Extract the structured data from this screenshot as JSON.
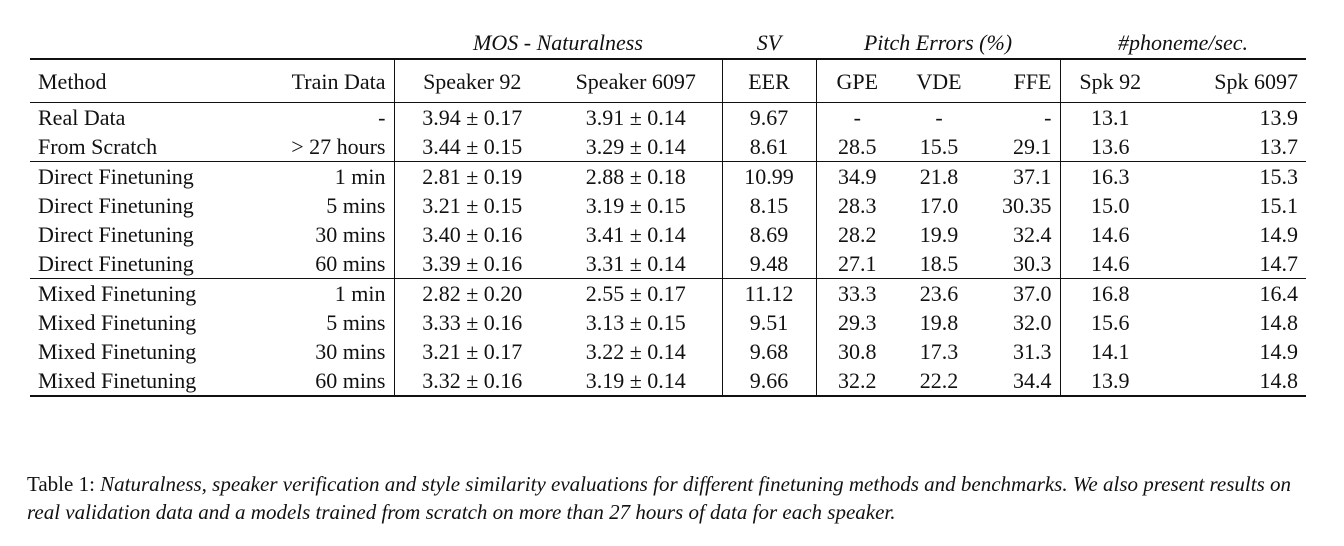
{
  "table": {
    "group_headers": {
      "mos": "MOS - Naturalness",
      "sv": "SV",
      "pitch": "Pitch Errors (%)",
      "rate": "#phoneme/sec."
    },
    "columns": [
      "Method",
      "Train Data",
      "Speaker 92",
      "Speaker 6097",
      "EER",
      "GPE",
      "VDE",
      "FFE",
      "Spk 92",
      "Spk 6097"
    ],
    "rows": [
      [
        "Real Data",
        "-",
        "3.94 ± 0.17",
        "3.91 ± 0.14",
        "9.67",
        "-",
        "-",
        "-",
        "13.1",
        "13.9"
      ],
      [
        "From Scratch",
        "> 27 hours",
        "3.44 ± 0.15",
        "3.29 ± 0.14",
        "8.61",
        "28.5",
        "15.5",
        "29.1",
        "13.6",
        "13.7"
      ],
      [
        "Direct Finetuning",
        "1 min",
        "2.81 ± 0.19",
        "2.88 ± 0.18",
        "10.99",
        "34.9",
        "21.8",
        "37.1",
        "16.3",
        "15.3"
      ],
      [
        "Direct Finetuning",
        "5 mins",
        "3.21 ± 0.15",
        "3.19 ± 0.15",
        "8.15",
        "28.3",
        "17.0",
        "30.35",
        "15.0",
        "15.1"
      ],
      [
        "Direct Finetuning",
        "30 mins",
        "3.40 ± 0.16",
        "3.41 ± 0.14",
        "8.69",
        "28.2",
        "19.9",
        "32.4",
        "14.6",
        "14.9"
      ],
      [
        "Direct Finetuning",
        "60 mins",
        "3.39 ± 0.16",
        "3.31 ± 0.14",
        "9.48",
        "27.1",
        "18.5",
        "30.3",
        "14.6",
        "14.7"
      ],
      [
        "Mixed Finetuning",
        "1 min",
        "2.82 ± 0.20",
        "2.55 ± 0.17",
        "11.12",
        "33.3",
        "23.6",
        "37.0",
        "16.8",
        "16.4"
      ],
      [
        "Mixed Finetuning",
        "5 mins",
        "3.33 ± 0.16",
        "3.13 ± 0.15",
        "9.51",
        "29.3",
        "19.8",
        "32.0",
        "15.6",
        "14.8"
      ],
      [
        "Mixed Finetuning",
        "30 mins",
        "3.21 ± 0.17",
        "3.22 ± 0.14",
        "9.68",
        "30.8",
        "17.3",
        "31.3",
        "14.1",
        "14.9"
      ],
      [
        "Mixed Finetuning",
        "60 mins",
        "3.32 ± 0.16",
        "3.19 ± 0.14",
        "9.66",
        "32.2",
        "22.2",
        "34.4",
        "13.9",
        "14.8"
      ]
    ]
  },
  "caption": {
    "label": "Table 1:",
    "text": "Naturalness, speaker verification and style similarity evaluations for different finetuning methods and benchmarks. We also present results on real validation data and a models trained from scratch on more than 27 hours of data for each speaker."
  }
}
